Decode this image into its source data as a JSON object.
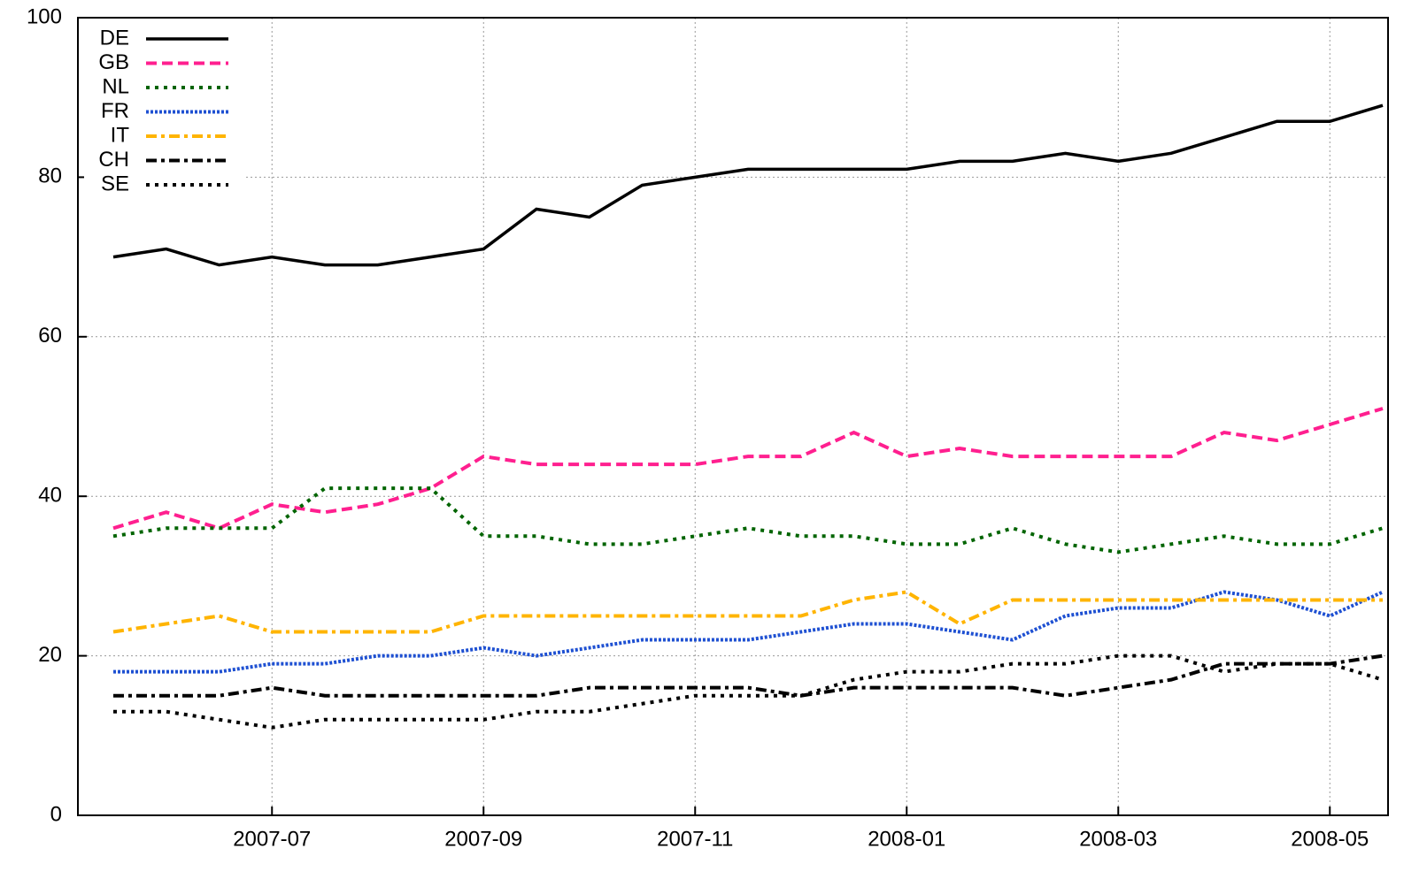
{
  "chart_data": {
    "type": "line",
    "categories": [
      null,
      null,
      null,
      "2007-07",
      null,
      null,
      null,
      "2007-09",
      null,
      null,
      null,
      "2007-11",
      null,
      null,
      null,
      "2008-01",
      null,
      null,
      null,
      "2008-03",
      null,
      null,
      null,
      "2008-05",
      null
    ],
    "series": [
      {
        "name": "DE",
        "color": "#000000",
        "dash": "solid",
        "values": [
          70,
          71,
          69,
          70,
          69,
          69,
          70,
          71,
          76,
          75,
          79,
          80,
          81,
          81,
          81,
          81,
          82,
          82,
          83,
          82,
          83,
          85,
          87,
          87,
          89
        ]
      },
      {
        "name": "GB",
        "color": "#ff1f8f",
        "dash": "dashed",
        "values": [
          36,
          38,
          36,
          39,
          38,
          39,
          41,
          45,
          44,
          44,
          44,
          44,
          45,
          45,
          48,
          45,
          46,
          45,
          45,
          45,
          45,
          48,
          47,
          49,
          51
        ]
      },
      {
        "name": "NL",
        "color": "#006400",
        "dash": "dotted",
        "values": [
          35,
          36,
          36,
          36,
          41,
          41,
          41,
          35,
          35,
          34,
          34,
          35,
          36,
          35,
          35,
          34,
          34,
          36,
          34,
          33,
          34,
          35,
          34,
          34,
          36
        ]
      },
      {
        "name": "FR",
        "color": "#1e50d2",
        "dash": "fine-dotted",
        "values": [
          18,
          18,
          18,
          19,
          19,
          20,
          20,
          21,
          20,
          21,
          22,
          22,
          22,
          23,
          24,
          24,
          23,
          22,
          25,
          26,
          26,
          28,
          27,
          25,
          28
        ]
      },
      {
        "name": "IT",
        "color": "#ffb400",
        "dash": "dash-dot",
        "values": [
          23,
          24,
          25,
          23,
          23,
          23,
          23,
          25,
          25,
          25,
          25,
          25,
          25,
          25,
          27,
          28,
          24,
          27,
          27,
          27,
          27,
          27,
          27,
          27,
          27
        ]
      },
      {
        "name": "CH",
        "color": "#000000",
        "dash": "dash-dot",
        "values": [
          15,
          15,
          15,
          16,
          15,
          15,
          15,
          15,
          15,
          16,
          16,
          16,
          16,
          15,
          16,
          16,
          16,
          16,
          15,
          16,
          17,
          19,
          19,
          19,
          20
        ]
      },
      {
        "name": "SE",
        "color": "#000000",
        "dash": "dotted",
        "values": [
          13,
          13,
          12,
          11,
          12,
          12,
          12,
          12,
          13,
          13,
          14,
          15,
          15,
          15,
          17,
          18,
          18,
          19,
          19,
          20,
          20,
          18,
          19,
          19,
          17
        ]
      }
    ],
    "ylim": [
      0,
      100
    ],
    "yticks": [
      0,
      20,
      40,
      60,
      80,
      100
    ],
    "grid": true,
    "legend": "upper left"
  }
}
